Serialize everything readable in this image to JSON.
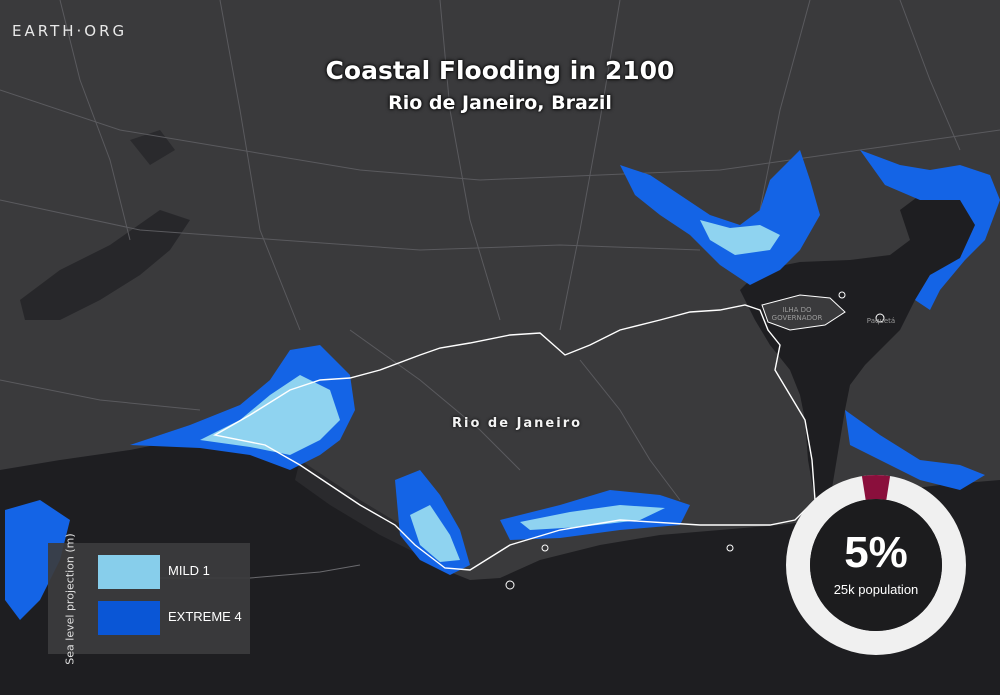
{
  "brand": {
    "logo": "EARTH·ORG"
  },
  "header": {
    "title": "Coastal Flooding in 2100",
    "subtitle": "Rio de Janeiro, Brazil"
  },
  "map": {
    "city_label": "Rio de Janeiro",
    "island_label": "ILHA DO GOVERNADOR",
    "island_label_2": "Paquetá",
    "colors": {
      "land": "#3a3a3c",
      "water": "#1e1e21",
      "mild": "#8fd3f0",
      "extreme": "#1464e6",
      "boundary": "#ffffff"
    }
  },
  "legend": {
    "axis_title": "Sea level projection (m)",
    "items": [
      {
        "label": "MILD 1",
        "color": "#87ceeb"
      },
      {
        "label": "EXTREME 4",
        "color": "#0a56d6"
      }
    ]
  },
  "stat": {
    "percent_label": "5%",
    "percent_value": 5,
    "caption": "25k population",
    "ring_color": "#f0f0f0",
    "highlight_color": "#8a0f3c",
    "center_color": "#1c1c1e"
  }
}
